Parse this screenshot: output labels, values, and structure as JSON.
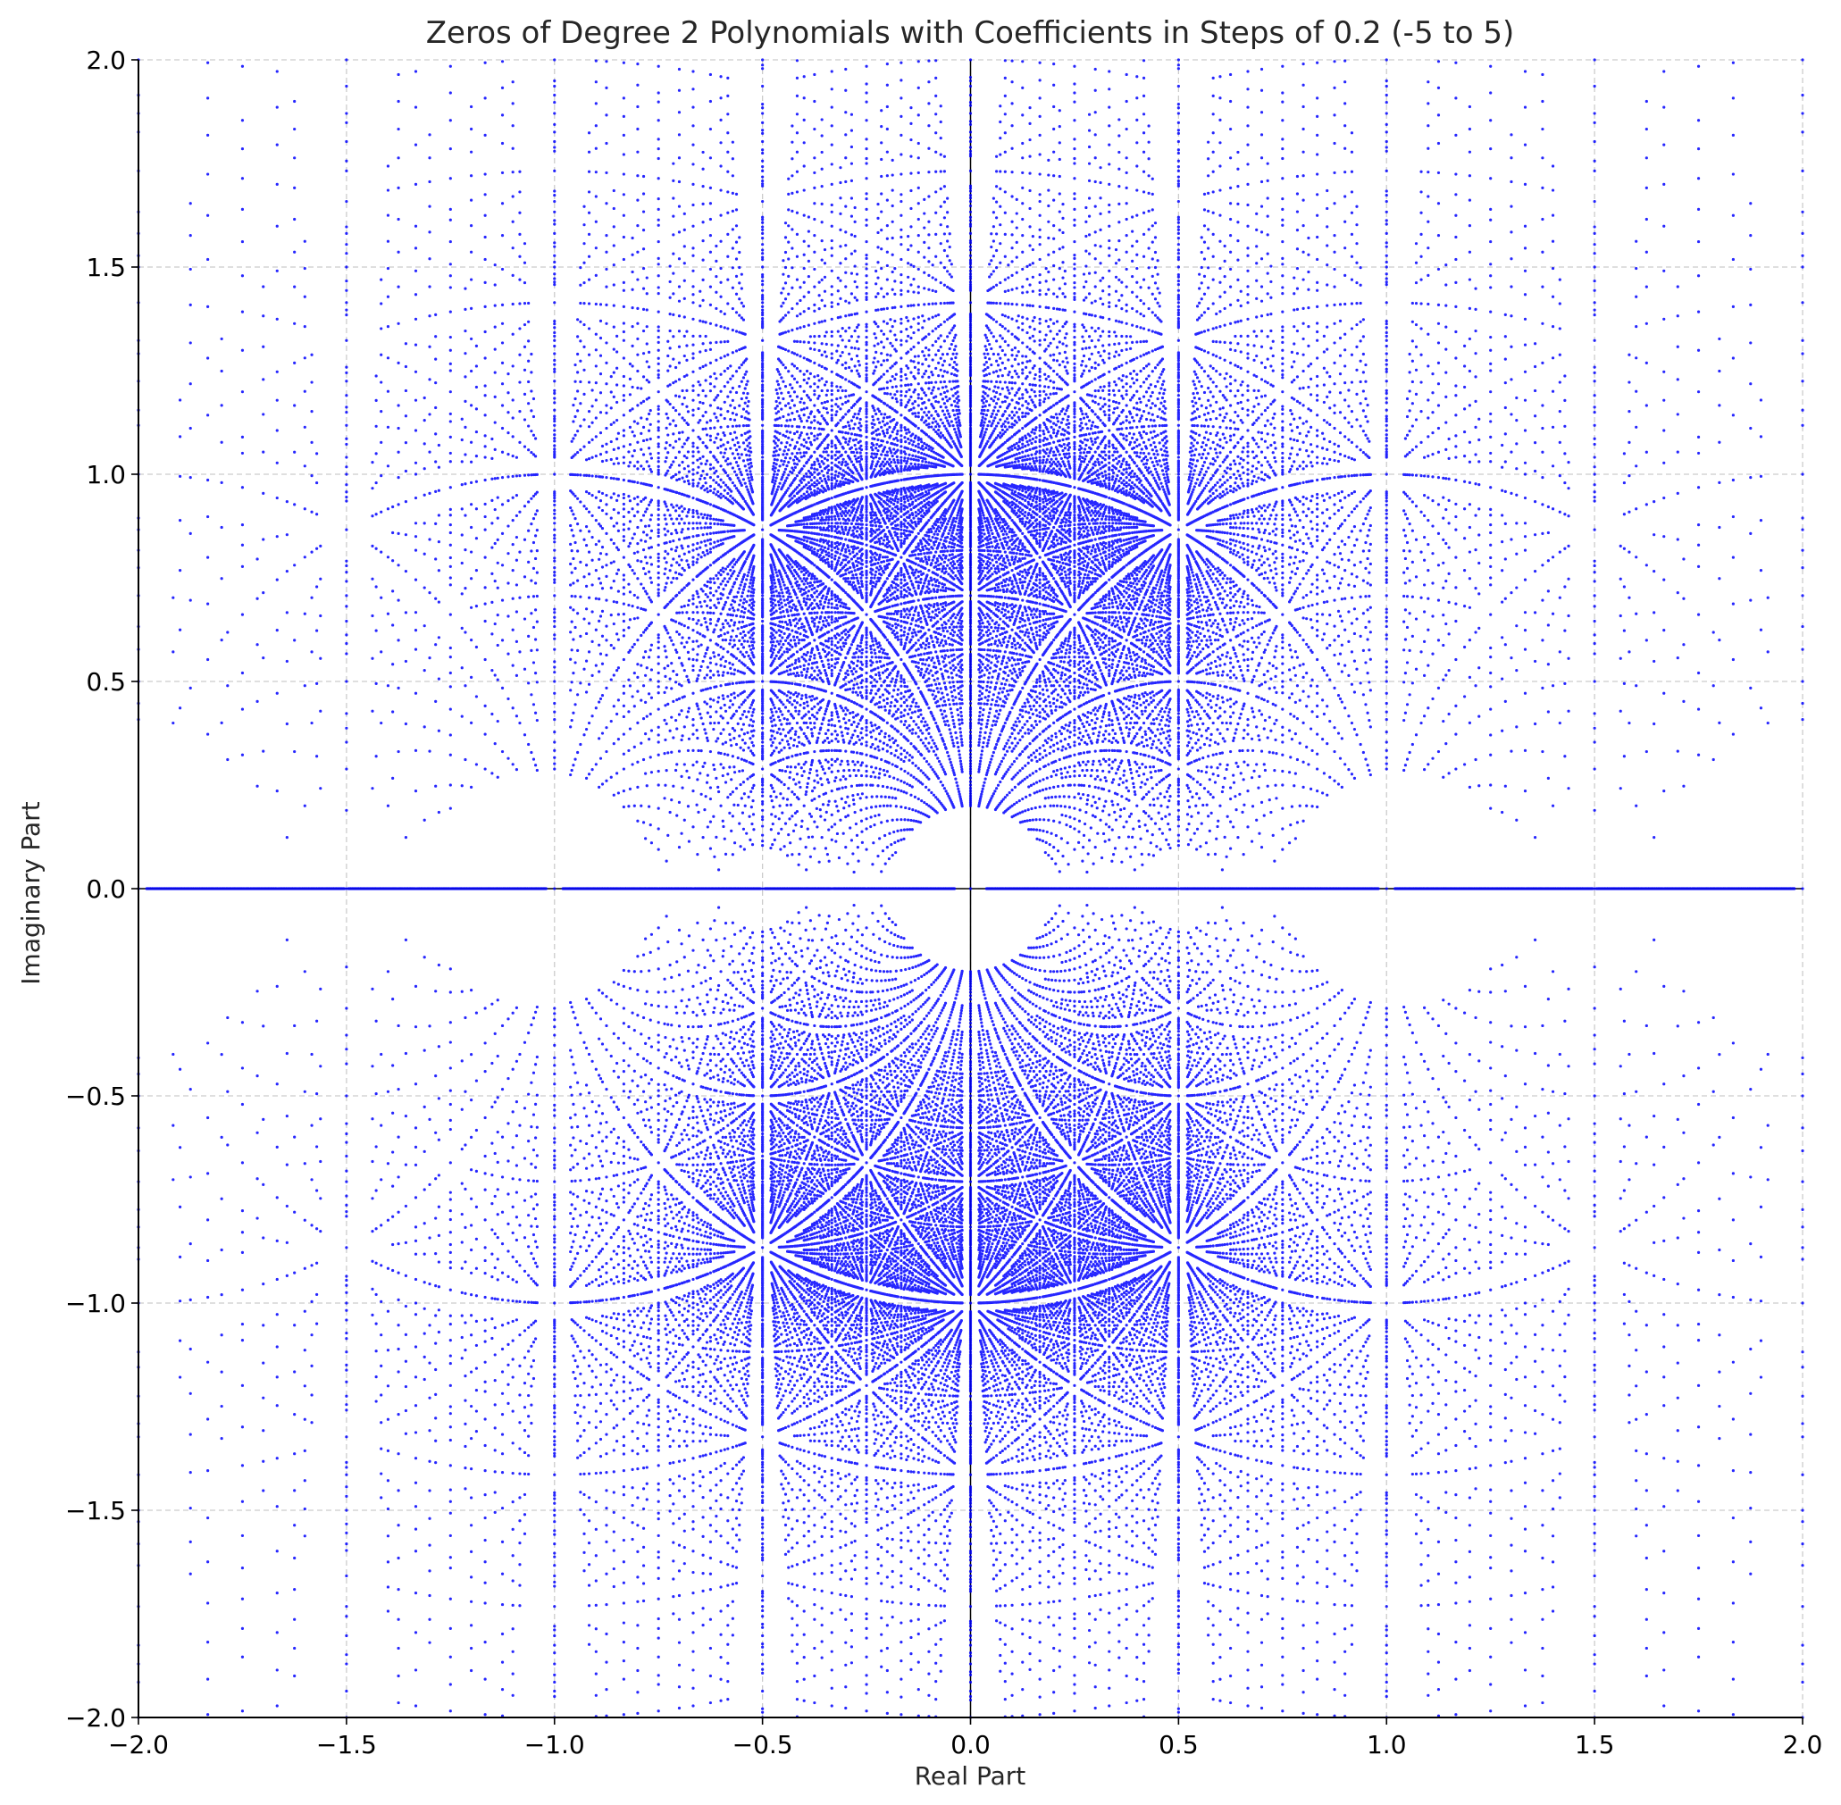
{
  "chart_data": {
    "type": "scatter",
    "title": "Zeros of Degree 2 Polynomials with Coefficients in Steps of 0.2 (-5 to 5)",
    "xlabel": "Real Part",
    "ylabel": "Imaginary Part",
    "xlim": [
      -2.0,
      2.0
    ],
    "ylim": [
      -2.0,
      2.0
    ],
    "xticks": [
      -2.0,
      -1.5,
      -1.0,
      -0.5,
      0.0,
      0.5,
      1.0,
      1.5,
      2.0
    ],
    "yticks": [
      -2.0,
      -1.5,
      -1.0,
      -0.5,
      0.0,
      0.5,
      1.0,
      1.5,
      2.0
    ],
    "xtick_labels": [
      "−2.0",
      "−1.5",
      "−1.0",
      "−0.5",
      "0.0",
      "0.5",
      "1.0",
      "1.5",
      "2.0"
    ],
    "ytick_labels": [
      "−2.0",
      "−1.5",
      "−1.0",
      "−0.5",
      "0.0",
      "0.5",
      "1.0",
      "1.5",
      "2.0"
    ],
    "grid": true,
    "grid_style": "dashed",
    "reference_lines": {
      "x": 0,
      "y": 0
    },
    "generator": {
      "description": "roots of a*z^2 + b*z + c for a, b, c in -5..5 step 0.2, a != 0",
      "coef_min": -5,
      "coef_max": 5,
      "coef_step": 0.2,
      "degree": 2
    },
    "marker_color": "#0000ff",
    "grid_color": "#cccccc",
    "axis_color": "#000000"
  }
}
